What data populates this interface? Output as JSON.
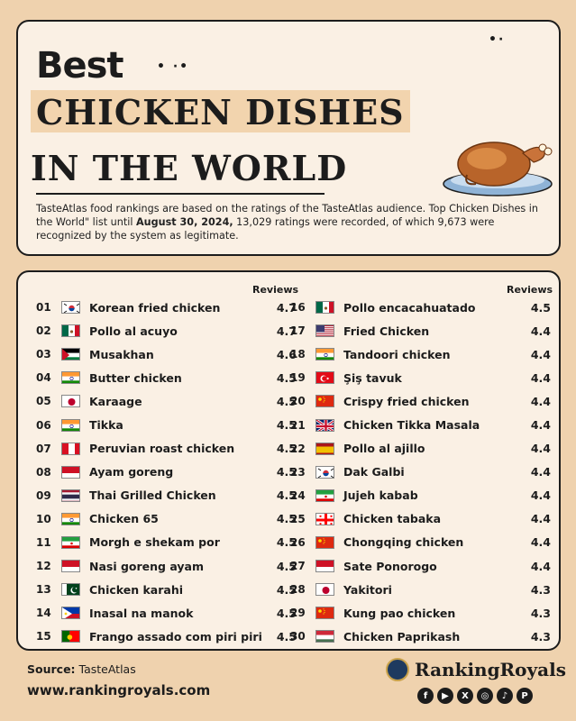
{
  "header": {
    "title_best": "Best",
    "title_line2": "CHICKEN DISHES",
    "title_line3": "IN THE WORLD",
    "intro_part1": "TasteAtlas food rankings are based on the ratings of the TasteAtlas audience. Top Chicken Dishes in the World\" list until ",
    "intro_date": "August 30, 2024,",
    "intro_part2": " 13,029 ratings were recorded, of which 9,673 were recognized by the system as legitimate."
  },
  "list": {
    "reviews_label": "Reviews",
    "left": [
      {
        "rank": "01",
        "name": "Korean fried chicken",
        "score": "4.7",
        "flag": "kr"
      },
      {
        "rank": "02",
        "name": "Pollo al acuyo",
        "score": "4.7",
        "flag": "mx"
      },
      {
        "rank": "03",
        "name": "Musakhan",
        "score": "4.6",
        "flag": "ps"
      },
      {
        "rank": "04",
        "name": "Butter chicken",
        "score": "4.5",
        "flag": "in"
      },
      {
        "rank": "05",
        "name": "Karaage",
        "score": "4.5",
        "flag": "jp"
      },
      {
        "rank": "06",
        "name": "Tikka",
        "score": "4.5",
        "flag": "in"
      },
      {
        "rank": "07",
        "name": "Peruvian roast chicken",
        "score": "4.5",
        "flag": "pe"
      },
      {
        "rank": "08",
        "name": "Ayam goreng",
        "score": "4.5",
        "flag": "id"
      },
      {
        "rank": "09",
        "name": "Thai Grilled Chicken",
        "score": "4.5",
        "flag": "th"
      },
      {
        "rank": "10",
        "name": "Chicken 65",
        "score": "4.5",
        "flag": "in"
      },
      {
        "rank": "11",
        "name": "Morgh e shekam por",
        "score": "4.5",
        "flag": "ir"
      },
      {
        "rank": "12",
        "name": "Nasi goreng ayam",
        "score": "4.5",
        "flag": "id"
      },
      {
        "rank": "13",
        "name": "Chicken karahi",
        "score": "4.5",
        "flag": "pk"
      },
      {
        "rank": "14",
        "name": "Inasal na manok",
        "score": "4.5",
        "flag": "ph"
      },
      {
        "rank": "15",
        "name": "Frango assado com piri piri",
        "score": "4.5",
        "flag": "pt"
      }
    ],
    "right": [
      {
        "rank": "16",
        "name": "Pollo encacahuatado",
        "score": "4.5",
        "flag": "mx"
      },
      {
        "rank": "17",
        "name": "Fried Chicken",
        "score": "4.4",
        "flag": "us"
      },
      {
        "rank": "18",
        "name": "Tandoori chicken",
        "score": "4.4",
        "flag": "in"
      },
      {
        "rank": "19",
        "name": "Şiş tavuk",
        "score": "4.4",
        "flag": "tr"
      },
      {
        "rank": "20",
        "name": "Crispy fried chicken",
        "score": "4.4",
        "flag": "cn"
      },
      {
        "rank": "21",
        "name": "Chicken Tikka Masala",
        "score": "4.4",
        "flag": "gb"
      },
      {
        "rank": "22",
        "name": "Pollo al ajillo",
        "score": "4.4",
        "flag": "es"
      },
      {
        "rank": "23",
        "name": "Dak Galbi",
        "score": "4.4",
        "flag": "kr"
      },
      {
        "rank": "24",
        "name": "Jujeh kabab",
        "score": "4.4",
        "flag": "ir"
      },
      {
        "rank": "25",
        "name": "Chicken tabaka",
        "score": "4.4",
        "flag": "ge"
      },
      {
        "rank": "26",
        "name": "Chongqing chicken",
        "score": "4.4",
        "flag": "cn"
      },
      {
        "rank": "27",
        "name": "Sate Ponorogo",
        "score": "4.4",
        "flag": "id"
      },
      {
        "rank": "28",
        "name": "Yakitori",
        "score": "4.3",
        "flag": "jp"
      },
      {
        "rank": "29",
        "name": "Kung pao chicken",
        "score": "4.3",
        "flag": "cn"
      },
      {
        "rank": "30",
        "name": "Chicken Paprikash",
        "score": "4.3",
        "flag": "hu"
      }
    ]
  },
  "footer": {
    "source_label": "Source:",
    "source_value": " TasteAtlas",
    "url": "www.rankingroyals.com",
    "brand": "RankingRoyals",
    "socials": [
      "f",
      "▶",
      "X",
      "◎",
      "♪",
      "P"
    ]
  },
  "colors": {
    "background": "#efd2ae",
    "card": "#faf0e4",
    "title_highlight": "#f2d4ae"
  }
}
